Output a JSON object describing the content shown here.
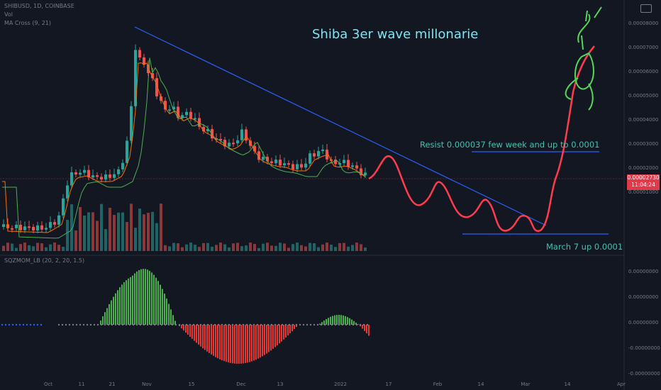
{
  "header": {
    "symbol_line": "SHIBUSD, 1D, COINBASE",
    "vol_label": "Vol",
    "ma_label": "MA Cross (9, 21)",
    "osc_label": "SQZMOM_LB (20, 2, 20, 1.5)"
  },
  "annotations": {
    "title": "Shiba 3er wave millonarie",
    "resist": "Resist 0.000037 few week and up to 0.0001",
    "march": "March 7 up 0.0001"
  },
  "price_tag": {
    "price": "0.00002730",
    "timer": "11:04:24"
  },
  "colors": {
    "background": "#131722",
    "up": "#26a69a",
    "down": "#ef5350",
    "trendline": "#2962ff",
    "projection": "#ff3b4e",
    "osc_up": "#4caf50",
    "osc_down": "#e53935",
    "ma_fast": "#ff6d00",
    "ma_slow": "#4caf50"
  },
  "chart_data": {
    "type": "candlestick",
    "x_ticks": [
      "Oct",
      "11",
      "21",
      "Nov",
      "15",
      "Dec",
      "13",
      "2022",
      "17",
      "Feb",
      "14",
      "Mar",
      "14",
      "Apr"
    ],
    "y_ticks_price": [
      "0.00008000",
      "0.00007000",
      "0.00006000",
      "0.00005000",
      "0.00004000",
      "0.00003000",
      "0.00002000",
      "0.00001000"
    ],
    "y_ticks_osc": [
      "0.00000000",
      "0.00000000",
      "0.00000000",
      "-0.00000000",
      "-0.00000000"
    ],
    "price_ohlc_approx_candles": 86,
    "close_last": 2.73e-05,
    "key_levels": {
      "resist": 3.7e-05,
      "target": 0.0001
    },
    "trendline": {
      "from_price": 8.8e-05,
      "to_price": 2.6e-05
    },
    "projection_path": "wave up to resist, three lower swings, breakout to target by March"
  }
}
